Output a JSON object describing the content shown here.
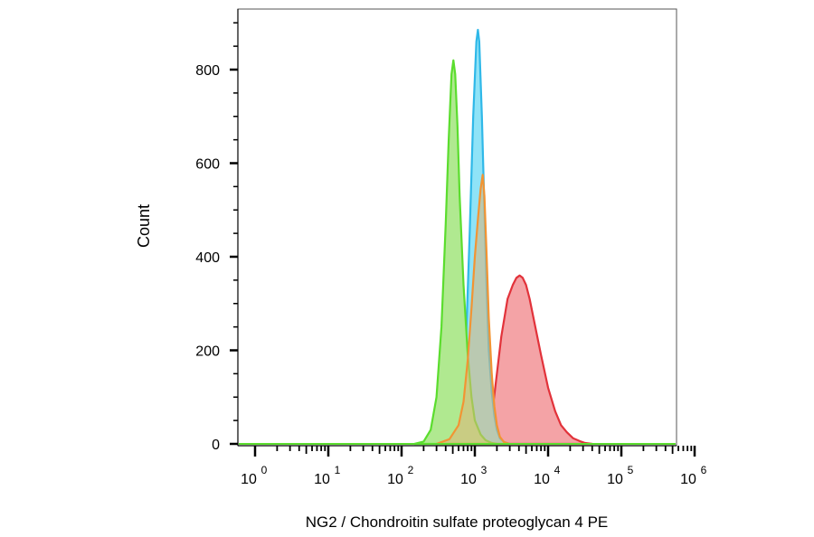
{
  "chart_data": {
    "type": "area",
    "title": "",
    "xlabel": "NG2 / Chondroitin sulfate proteoglycan 4 PE",
    "ylabel": "Count",
    "x_scale": "log10",
    "xlim": [
      1,
      1000000
    ],
    "ylim": [
      0,
      900
    ],
    "x_ticks": [
      {
        "base": "10",
        "exp": "0",
        "value": 1
      },
      {
        "base": "10",
        "exp": "1",
        "value": 10
      },
      {
        "base": "10",
        "exp": "2",
        "value": 100
      },
      {
        "base": "10",
        "exp": "3",
        "value": 1000
      },
      {
        "base": "10",
        "exp": "4",
        "value": 10000
      },
      {
        "base": "10",
        "exp": "5",
        "value": 100000
      },
      {
        "base": "10",
        "exp": "6",
        "value": 1000000
      }
    ],
    "y_ticks": [
      {
        "label": "0",
        "value": 0
      },
      {
        "label": "200",
        "value": 200
      },
      {
        "label": "400",
        "value": 400
      },
      {
        "label": "600",
        "value": 600
      },
      {
        "label": "800",
        "value": 800
      }
    ],
    "grid": false,
    "legend": "none",
    "series": [
      {
        "fill": "#f4a3a6",
        "stroke": "#e2323a",
        "x": [
          600,
          800,
          1200,
          1800,
          2300,
          2800,
          3300,
          3700,
          4100,
          4500,
          5000,
          5600,
          6500,
          8000,
          10000,
          12500,
          15000,
          18000,
          22000,
          27000,
          32000,
          40000
        ],
        "y": [
          0,
          3,
          15,
          90,
          230,
          310,
          340,
          355,
          360,
          355,
          340,
          310,
          260,
          190,
          120,
          70,
          40,
          25,
          12,
          6,
          2,
          0
        ]
      },
      {
        "fill": "#8fe3f7",
        "stroke": "#2fb8e8",
        "x": [
          300,
          500,
          650,
          750,
          850,
          950,
          1050,
          1100,
          1150,
          1250,
          1350,
          1450,
          1550,
          1700,
          1850,
          2000,
          2200,
          2500,
          3000
        ],
        "y": [
          0,
          15,
          80,
          200,
          450,
          700,
          860,
          885,
          860,
          700,
          500,
          330,
          200,
          110,
          60,
          30,
          12,
          4,
          0
        ]
      },
      {
        "fill": "#b0e990",
        "stroke": "#5bdd2e",
        "x": [
          150,
          200,
          250,
          300,
          350,
          400,
          440,
          480,
          510,
          540,
          580,
          620,
          700,
          800,
          900,
          1000,
          1200,
          1400,
          1700,
          2000
        ],
        "y": [
          0,
          5,
          30,
          100,
          250,
          470,
          650,
          790,
          820,
          790,
          680,
          530,
          340,
          190,
          100,
          50,
          20,
          8,
          2,
          0
        ]
      },
      {
        "fill": "rgba(222,180,120,0.55)",
        "stroke": "#f29433",
        "x": [
          300,
          450,
          600,
          700,
          800,
          900,
          1000,
          1100,
          1200,
          1280,
          1350,
          1450,
          1550,
          1700,
          1850,
          2000,
          2200,
          2500,
          3000
        ],
        "y": [
          0,
          10,
          40,
          90,
          180,
          290,
          400,
          480,
          545,
          575,
          530,
          400,
          270,
          150,
          80,
          40,
          15,
          4,
          0
        ]
      }
    ]
  }
}
